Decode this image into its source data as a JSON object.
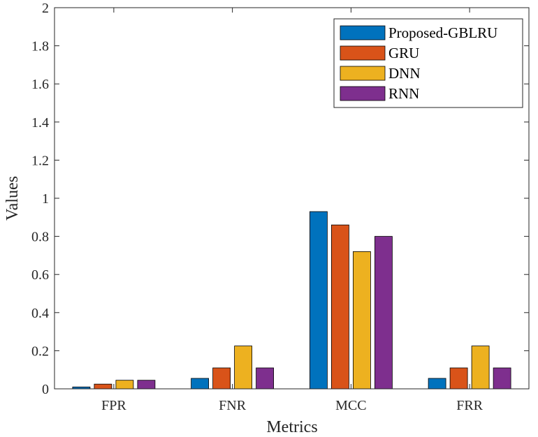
{
  "chart_data": {
    "type": "bar",
    "title": "",
    "xlabel": "Metrics",
    "ylabel": "Values",
    "ylim": [
      0,
      2
    ],
    "yticks": [
      0,
      0.2,
      0.4,
      0.6,
      0.8,
      1,
      1.2,
      1.4,
      1.6,
      1.8,
      2
    ],
    "ytick_labels": [
      "0",
      "0.2",
      "0.4",
      "0.6",
      "0.8",
      "1",
      "1.2",
      "1.4",
      "1.6",
      "1.8",
      "2"
    ],
    "categories": [
      "FPR",
      "FNR",
      "MCC",
      "FRR"
    ],
    "series": [
      {
        "name": "Proposed-GBLRU",
        "color": "#0072BD",
        "values": [
          0.01,
          0.055,
          0.93,
          0.055
        ]
      },
      {
        "name": "GRU",
        "color": "#D95319",
        "values": [
          0.025,
          0.11,
          0.86,
          0.11
        ]
      },
      {
        "name": "DNN",
        "color": "#EDB120",
        "values": [
          0.045,
          0.225,
          0.72,
          0.225
        ]
      },
      {
        "name": "RNN",
        "color": "#7E2F8E",
        "values": [
          0.045,
          0.11,
          0.8,
          0.11
        ]
      }
    ],
    "legend_position": "top-right",
    "grid": false
  }
}
